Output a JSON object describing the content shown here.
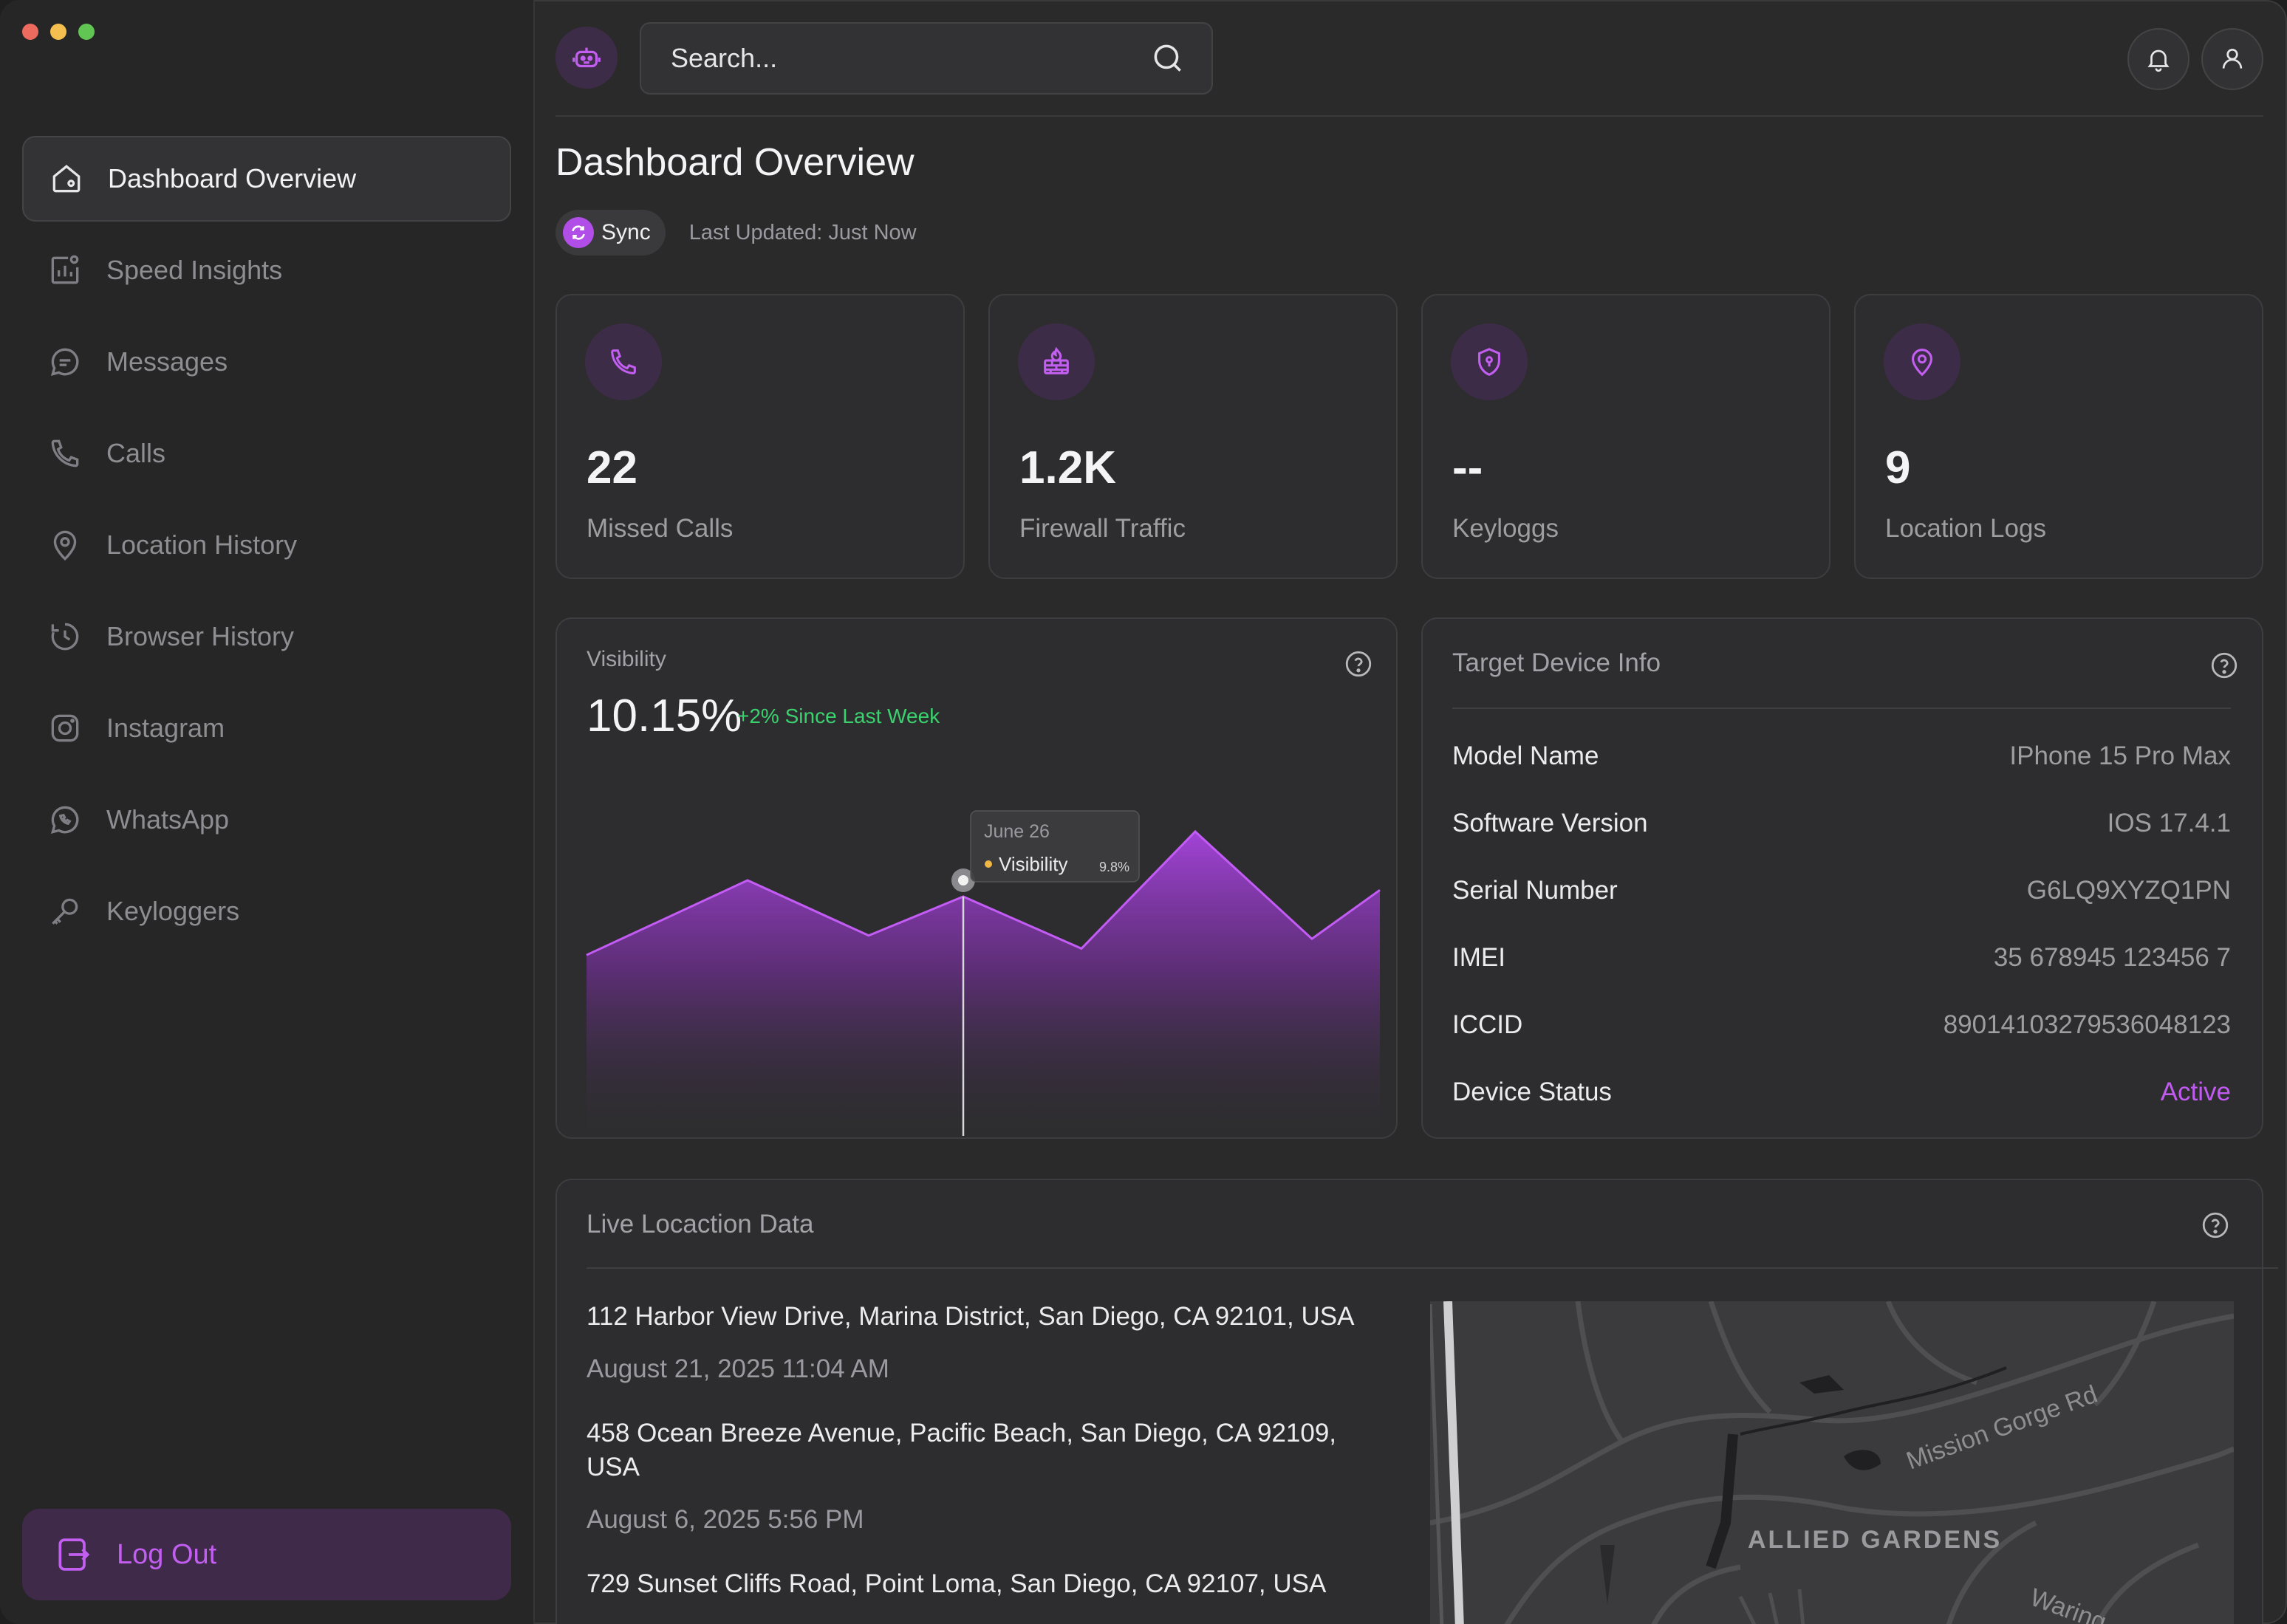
{
  "window": {
    "traffic_lights": [
      "#ed6a5e",
      "#f5bf4f",
      "#61c554"
    ]
  },
  "sidebar": {
    "items": [
      {
        "label": "Dashboard Overview",
        "icon": "home-icon",
        "active": true
      },
      {
        "label": "Speed Insights",
        "icon": "chart-icon",
        "active": false
      },
      {
        "label": "Messages",
        "icon": "message-icon",
        "active": false
      },
      {
        "label": "Calls",
        "icon": "phone-icon",
        "active": false
      },
      {
        "label": "Location History",
        "icon": "location-pin-icon",
        "active": false
      },
      {
        "label": "Browser History",
        "icon": "history-icon",
        "active": false
      },
      {
        "label": "Instagram",
        "icon": "instagram-icon",
        "active": false
      },
      {
        "label": "WhatsApp",
        "icon": "whatsapp-icon",
        "active": false
      },
      {
        "label": "Keyloggers",
        "icon": "key-icon",
        "active": false
      }
    ],
    "logout_label": "Log Out"
  },
  "header": {
    "search_placeholder": "Search...",
    "accent": "#b24ee8"
  },
  "page": {
    "title": "Dashboard Overview",
    "sync_label": "Sync",
    "last_updated": "Last Updated: Just Now"
  },
  "stats": [
    {
      "value": "22",
      "label": "Missed Calls",
      "icon": "phone-icon"
    },
    {
      "value": "1.2K",
      "label": "Firewall Traffic",
      "icon": "firewall-icon"
    },
    {
      "value": "--",
      "label": "Keyloggs",
      "icon": "shield-icon"
    },
    {
      "value": "9",
      "label": "Location Logs",
      "icon": "location-pin-icon"
    }
  ],
  "visibility": {
    "label": "Visibility",
    "value": "10.15%",
    "delta": "+2% Since Last Week",
    "tooltip": {
      "date": "June 26",
      "series": "Visibility",
      "value": "9.8%"
    }
  },
  "chart_data": {
    "type": "area",
    "series": [
      {
        "name": "Visibility",
        "values": [
          42,
          65,
          48,
          60,
          44,
          80,
          47,
          62
        ]
      }
    ],
    "ylim": [
      0,
      100
    ],
    "highlight_index": 3,
    "color": "#b24ee8"
  },
  "device": {
    "title": "Target Device Info",
    "rows": [
      {
        "key": "Model Name",
        "value": "IPhone 15 Pro Max"
      },
      {
        "key": "Software Version",
        "value": "IOS 17.4.1"
      },
      {
        "key": "Serial Number",
        "value": "G6LQ9XYZQ1PN"
      },
      {
        "key": "IMEI",
        "value": "35 678945 123456 7"
      },
      {
        "key": "ICCID",
        "value": "89014103279536048123"
      },
      {
        "key": "Device Status",
        "value": "Active"
      }
    ]
  },
  "live": {
    "title": "Live Locaction Data",
    "entries": [
      {
        "address": "112 Harbor View Drive, Marina District, San Diego, CA 92101, USA",
        "time": "August 21, 2025 11:04 AM"
      },
      {
        "address": "458 Ocean Breeze Avenue, Pacific Beach, San Diego, CA 92109, USA",
        "time": "August 6, 2025 5:56 PM"
      },
      {
        "address": "729 Sunset Cliffs Road, Point Loma, San Diego, CA 92107, USA",
        "time": ""
      }
    ],
    "map": {
      "road_label": "Mission Gorge Rd",
      "area_label": "ALLIED GARDENS",
      "road_label_2": "Waring"
    }
  }
}
